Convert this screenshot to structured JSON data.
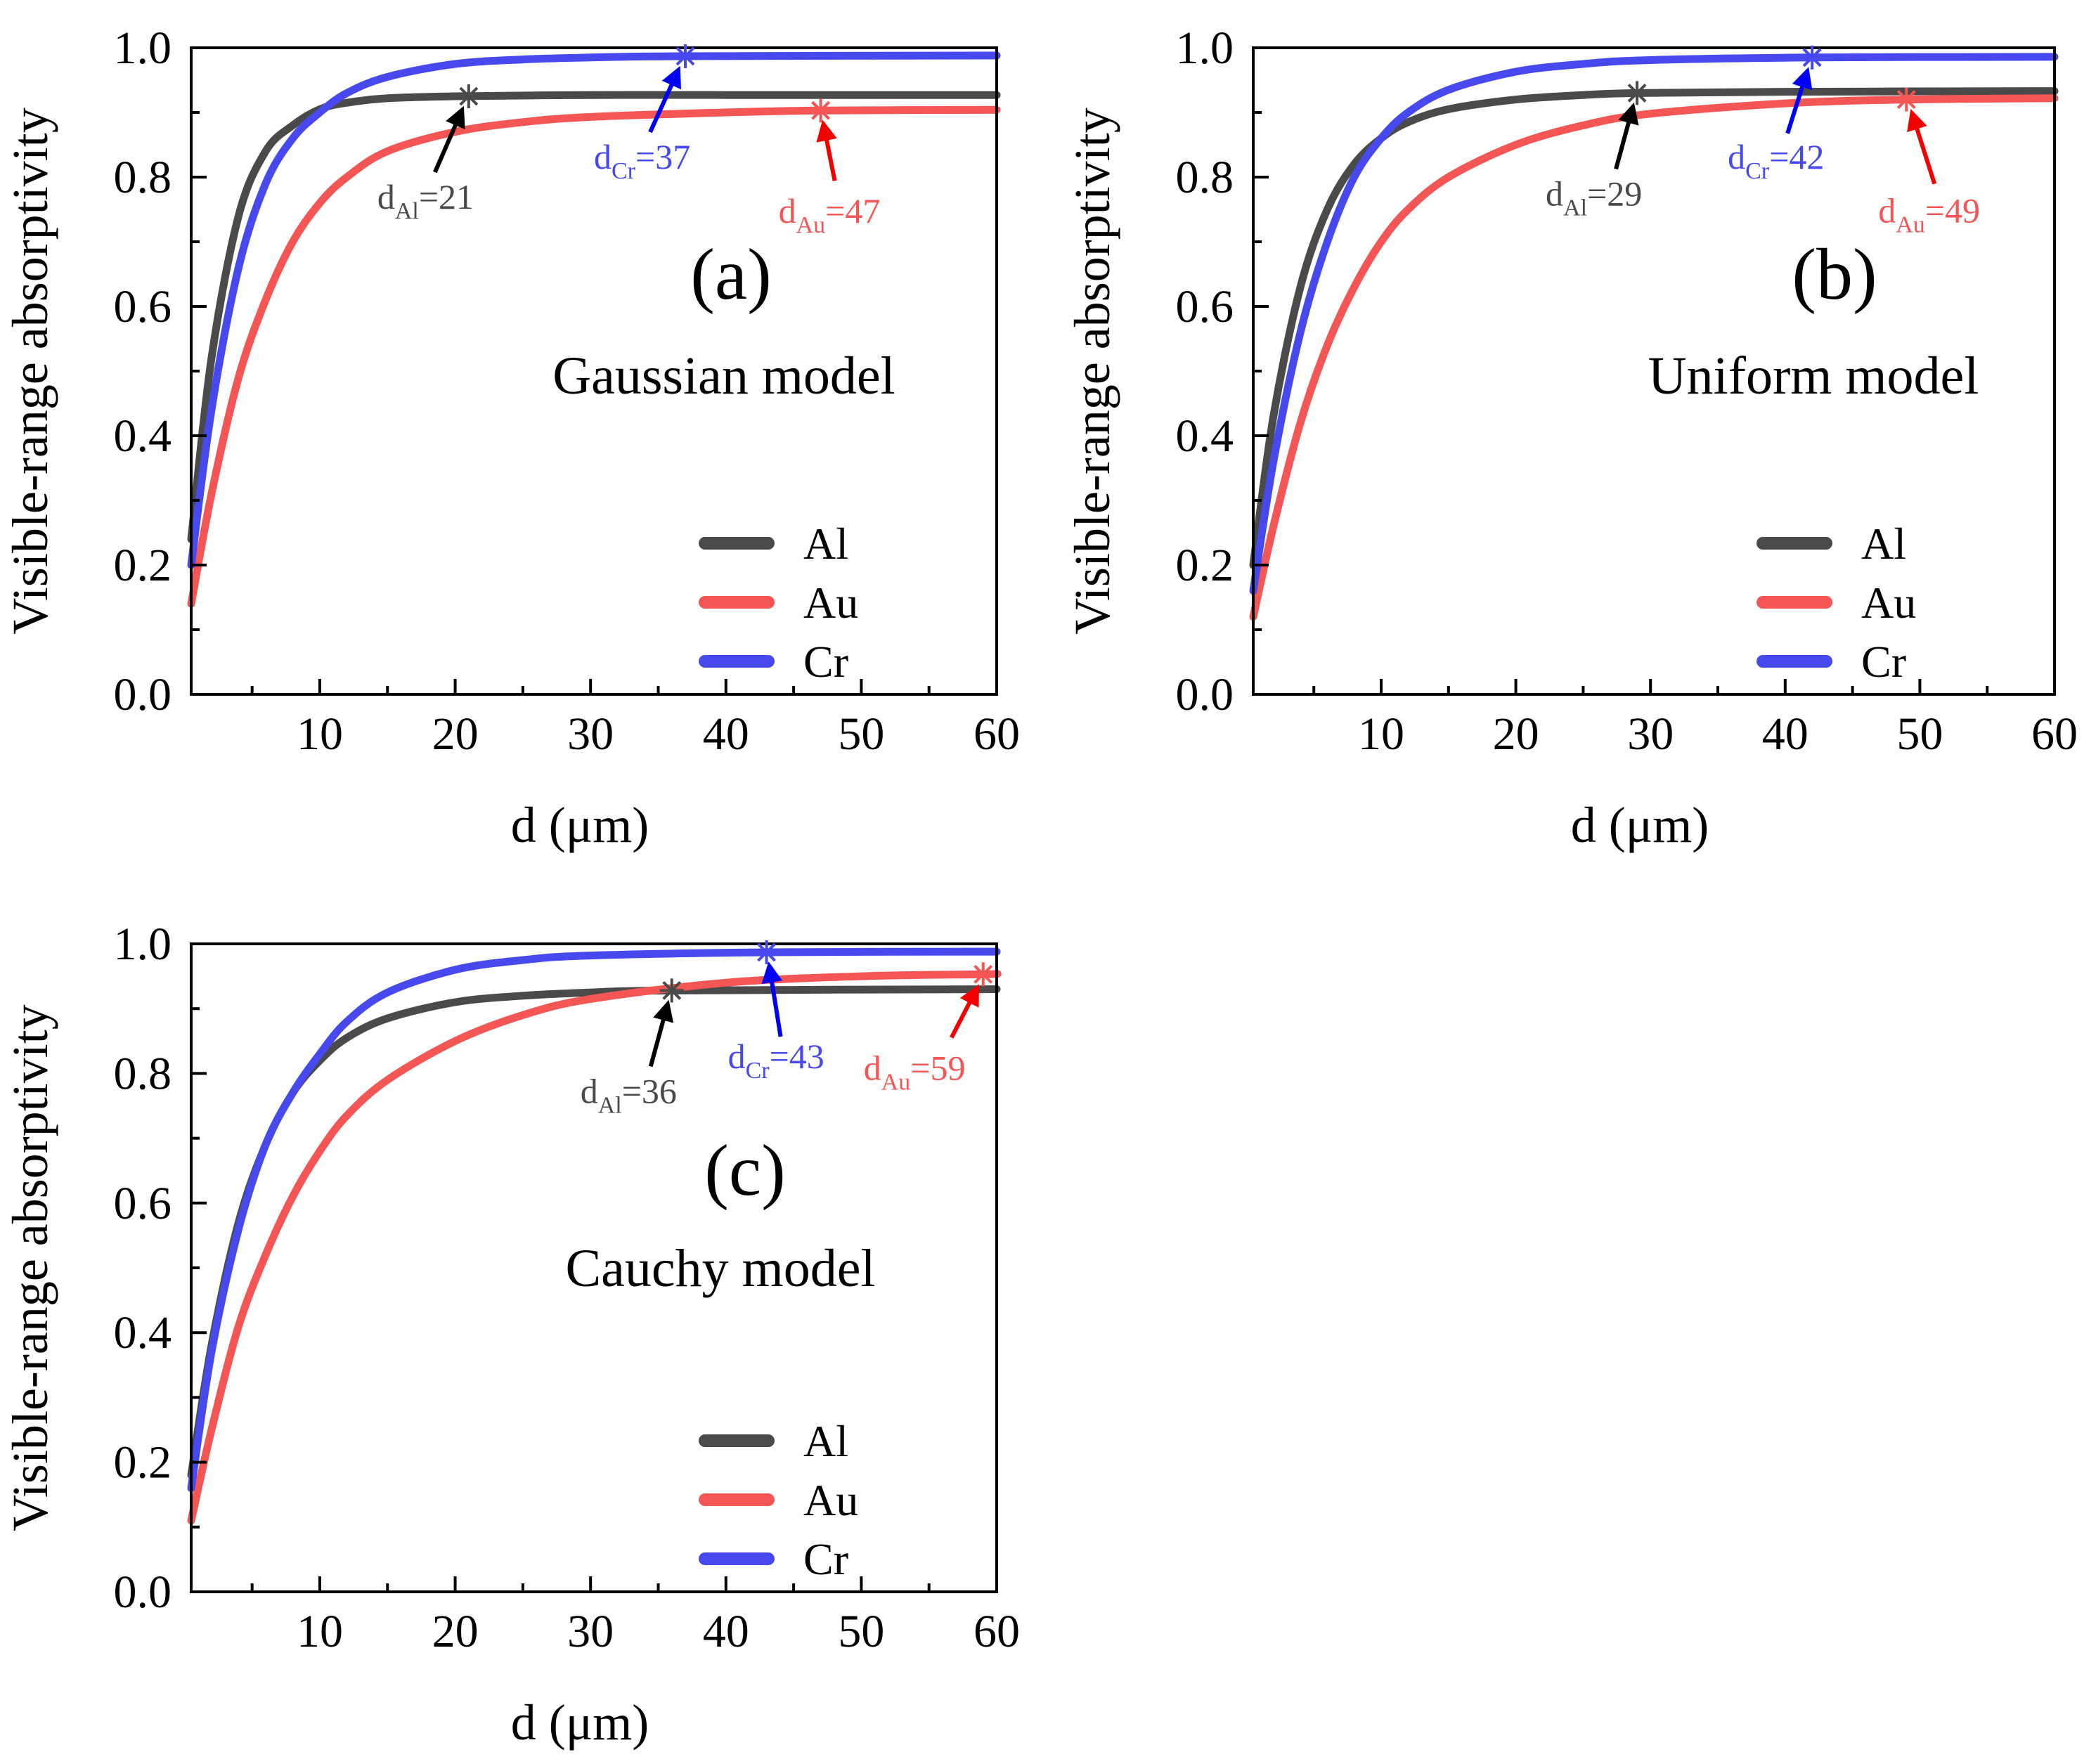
{
  "figure": {
    "colors": {
      "Al": "#4a4a4a",
      "Au": "#f45555",
      "Cr": "#4848ef",
      "axis": "#000000"
    }
  },
  "chart_data": [
    {
      "type": "line",
      "panel": "(a)",
      "model_label": "Gaussian model",
      "xlabel": "d (μm)",
      "ylabel": "Visible-range absorptivity",
      "xlim": [
        0.5,
        60
      ],
      "ylim": [
        0.0,
        1.0
      ],
      "xticks": [
        "10",
        "20",
        "30",
        "40",
        "50",
        "60"
      ],
      "yticks": [
        "0.0",
        "0.2",
        "0.4",
        "0.6",
        "0.8",
        "1.0"
      ],
      "legend_position": "bottom-right",
      "series": [
        {
          "name": "Al",
          "color": "#4a4a4a",
          "x": [
            0.5,
            2,
            4,
            6,
            8,
            10,
            12,
            15,
            20,
            30,
            40,
            60
          ],
          "y": [
            0.24,
            0.52,
            0.74,
            0.84,
            0.88,
            0.905,
            0.915,
            0.922,
            0.925,
            0.927,
            0.927,
            0.927
          ]
        },
        {
          "name": "Au",
          "color": "#f45555",
          "x": [
            0.5,
            2,
            4,
            6,
            8,
            10,
            12,
            15,
            20,
            25,
            30,
            40,
            47,
            60
          ],
          "y": [
            0.14,
            0.31,
            0.49,
            0.61,
            0.7,
            0.76,
            0.8,
            0.84,
            0.87,
            0.885,
            0.893,
            0.9,
            0.903,
            0.904
          ]
        },
        {
          "name": "Cr",
          "color": "#4848ef",
          "x": [
            0.5,
            2,
            4,
            6,
            8,
            10,
            12,
            15,
            20,
            25,
            30,
            37,
            60
          ],
          "y": [
            0.2,
            0.44,
            0.66,
            0.79,
            0.86,
            0.9,
            0.93,
            0.955,
            0.975,
            0.982,
            0.985,
            0.987,
            0.988
          ]
        }
      ],
      "annotations": [
        {
          "series": "Al",
          "sub": "Al",
          "value": "21",
          "x": 21,
          "y": 0.925
        },
        {
          "series": "Cr",
          "sub": "Cr",
          "value": "37",
          "x": 37,
          "y": 0.987
        },
        {
          "series": "Au",
          "sub": "Au",
          "value": "47",
          "x": 47,
          "y": 0.903
        }
      ]
    },
    {
      "type": "line",
      "panel": "(b)",
      "model_label": "Uniform model",
      "xlabel": "d (μm)",
      "ylabel": "Visible-range absorptivity",
      "xlim": [
        0.5,
        60
      ],
      "ylim": [
        0.0,
        1.0
      ],
      "xticks": [
        "10",
        "20",
        "30",
        "40",
        "50",
        "60"
      ],
      "yticks": [
        "0.0",
        "0.2",
        "0.4",
        "0.6",
        "0.8",
        "1.0"
      ],
      "legend_position": "bottom-right",
      "series": [
        {
          "name": "Al",
          "color": "#4a4a4a",
          "x": [
            0.5,
            2,
            4,
            6,
            8,
            10,
            12,
            15,
            20,
            25,
            29,
            40,
            60
          ],
          "y": [
            0.2,
            0.43,
            0.63,
            0.75,
            0.82,
            0.86,
            0.885,
            0.905,
            0.92,
            0.927,
            0.93,
            0.932,
            0.933
          ]
        },
        {
          "name": "Au",
          "color": "#f45555",
          "x": [
            0.5,
            2,
            4,
            6,
            8,
            10,
            12,
            15,
            20,
            25,
            30,
            40,
            49,
            60
          ],
          "y": [
            0.12,
            0.26,
            0.42,
            0.54,
            0.63,
            0.7,
            0.75,
            0.8,
            0.85,
            0.88,
            0.898,
            0.914,
            0.92,
            0.922
          ]
        },
        {
          "name": "Cr",
          "color": "#4848ef",
          "x": [
            0.5,
            2,
            4,
            6,
            8,
            10,
            12,
            15,
            20,
            25,
            30,
            42,
            60
          ],
          "y": [
            0.16,
            0.36,
            0.56,
            0.7,
            0.8,
            0.86,
            0.9,
            0.935,
            0.963,
            0.975,
            0.981,
            0.985,
            0.986
          ]
        }
      ],
      "annotations": [
        {
          "series": "Al",
          "sub": "Al",
          "value": "29",
          "x": 29,
          "y": 0.93
        },
        {
          "series": "Cr",
          "sub": "Cr",
          "value": "42",
          "x": 42,
          "y": 0.985
        },
        {
          "series": "Au",
          "sub": "Au",
          "value": "49",
          "x": 49,
          "y": 0.92
        }
      ]
    },
    {
      "type": "line",
      "panel": "(c)",
      "model_label": "Cauchy model",
      "xlabel": "d (μm)",
      "ylabel": "Visible-range absorptivity",
      "xlim": [
        0.5,
        60
      ],
      "ylim": [
        0.0,
        1.0
      ],
      "xticks": [
        "10",
        "20",
        "30",
        "40",
        "50",
        "60"
      ],
      "yticks": [
        "0.0",
        "0.2",
        "0.4",
        "0.6",
        "0.8",
        "1.0"
      ],
      "legend_position": "bottom-right",
      "series": [
        {
          "name": "Al",
          "color": "#4a4a4a",
          "x": [
            0.5,
            2,
            4,
            6,
            8,
            10,
            12,
            15,
            20,
            25,
            30,
            36,
            60
          ],
          "y": [
            0.18,
            0.38,
            0.57,
            0.69,
            0.77,
            0.82,
            0.855,
            0.885,
            0.91,
            0.92,
            0.925,
            0.928,
            0.93
          ]
        },
        {
          "name": "Au",
          "color": "#f45555",
          "x": [
            0.5,
            2,
            4,
            6,
            8,
            10,
            12,
            15,
            20,
            25,
            30,
            40,
            50,
            59,
            60
          ],
          "y": [
            0.11,
            0.25,
            0.41,
            0.52,
            0.61,
            0.68,
            0.735,
            0.79,
            0.85,
            0.89,
            0.915,
            0.94,
            0.95,
            0.953,
            0.954
          ]
        },
        {
          "name": "Cr",
          "color": "#4848ef",
          "x": [
            0.5,
            2,
            4,
            6,
            8,
            10,
            12,
            15,
            20,
            25,
            30,
            43,
            60
          ],
          "y": [
            0.16,
            0.37,
            0.56,
            0.69,
            0.77,
            0.83,
            0.88,
            0.925,
            0.96,
            0.975,
            0.982,
            0.987,
            0.988
          ]
        }
      ],
      "annotations": [
        {
          "series": "Al",
          "sub": "Al",
          "value": "36",
          "x": 36,
          "y": 0.928
        },
        {
          "series": "Cr",
          "sub": "Cr",
          "value": "43",
          "x": 43,
          "y": 0.987
        },
        {
          "series": "Au",
          "sub": "Au",
          "value": "59",
          "x": 59,
          "y": 0.953
        }
      ]
    }
  ]
}
